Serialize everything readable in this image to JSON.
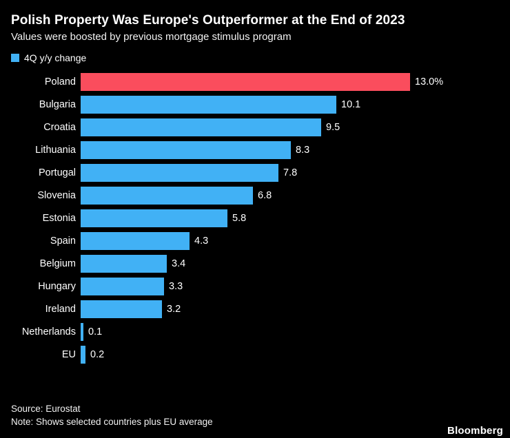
{
  "header": {
    "title": "Polish Property Was Europe's Outperformer at the End of 2023",
    "subtitle": "Values were boosted by previous mortgage stimulus program"
  },
  "legend": {
    "label": "4Q y/y change",
    "color": "#41b1f5"
  },
  "colors": {
    "bar_default": "#41b1f5",
    "bar_highlight": "#fa4d5d",
    "background": "#000000",
    "text": "#ffffff"
  },
  "chart_data": {
    "type": "bar",
    "orientation": "horizontal",
    "title": "Polish Property Was Europe's Outperformer at the End of 2023",
    "xlabel": "",
    "ylabel": "",
    "xlim": [
      0,
      13.5
    ],
    "grid": false,
    "legend_position": "top-left",
    "categories": [
      "Poland",
      "Bulgaria",
      "Croatia",
      "Lithuania",
      "Portugal",
      "Slovenia",
      "Estonia",
      "Spain",
      "Belgium",
      "Hungary",
      "Ireland",
      "Netherlands",
      "EU"
    ],
    "values": [
      13.0,
      10.1,
      9.5,
      8.3,
      7.8,
      6.8,
      5.8,
      4.3,
      3.4,
      3.3,
      3.2,
      0.1,
      0.2
    ],
    "value_labels": [
      "13.0%",
      "10.1",
      "9.5",
      "8.3",
      "7.8",
      "6.8",
      "5.8",
      "4.3",
      "3.4",
      "3.3",
      "3.2",
      "0.1",
      "0.2"
    ],
    "bar_colors": [
      "#fa4d5d",
      "#41b1f5",
      "#41b1f5",
      "#41b1f5",
      "#41b1f5",
      "#41b1f5",
      "#41b1f5",
      "#41b1f5",
      "#41b1f5",
      "#41b1f5",
      "#41b1f5",
      "#41b1f5",
      "#41b1f5"
    ]
  },
  "footer": {
    "source": "Source: Eurostat",
    "note": "Note: Shows selected countries plus EU average",
    "brand": "Bloomberg"
  }
}
